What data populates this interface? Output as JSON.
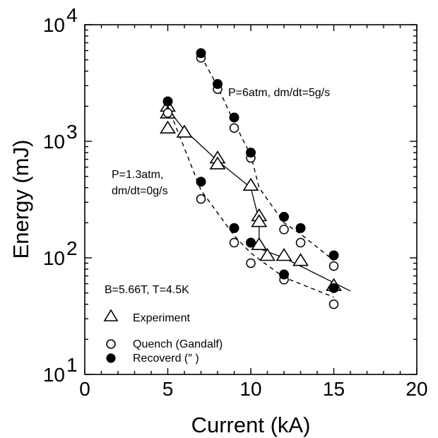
{
  "chart_data": {
    "type": "scatter",
    "xlabel": "Current (kA)",
    "ylabel": "Energy (mJ)",
    "xlim": [
      0,
      20
    ],
    "ylim": [
      10,
      10000
    ],
    "yscale": "log",
    "x_ticks": [
      0,
      5,
      10,
      15,
      20
    ],
    "y_ticks": [
      {
        "value": 10,
        "base": "10",
        "exp": "1"
      },
      {
        "value": 100,
        "base": "10",
        "exp": "2"
      },
      {
        "value": 1000,
        "base": "10",
        "exp": "3"
      },
      {
        "value": 10000,
        "base": "10",
        "exp": "4"
      }
    ],
    "grid": false,
    "annotations": [
      {
        "text": "P=6atm, dm/dt=5g/s"
      },
      {
        "text": "P=1.3atm,"
      },
      {
        "text": "dm/dt=0g/s"
      },
      {
        "text": "B=5.66T, T=4.5K"
      }
    ],
    "legend_position": "bottom-left",
    "legend": [
      "Experiment",
      "Quench (Gandalf)",
      "Recoverd (″    )"
    ],
    "series": [
      {
        "name": "Experiment",
        "marker": "triangle-open",
        "points": [
          [
            5,
            2000
          ],
          [
            5,
            1750
          ],
          [
            5,
            1300
          ],
          [
            6,
            1200
          ],
          [
            8,
            720
          ],
          [
            8,
            640
          ],
          [
            10,
            420
          ],
          [
            10.5,
            230
          ],
          [
            10.5,
            205
          ],
          [
            10.5,
            130
          ],
          [
            11,
            105
          ],
          [
            12,
            105
          ],
          [
            13,
            95
          ],
          [
            15,
            58
          ]
        ]
      },
      {
        "name": "Quench (Gandalf)",
        "marker": "circle-open",
        "points": [
          [
            5,
            1750
          ],
          [
            7,
            5200
          ],
          [
            7,
            320
          ],
          [
            8,
            2800
          ],
          [
            9,
            1300
          ],
          [
            9,
            135
          ],
          [
            10,
            720
          ],
          [
            10,
            90
          ],
          [
            12,
            175
          ],
          [
            12,
            65
          ],
          [
            13,
            135
          ],
          [
            15,
            85
          ],
          [
            15,
            40
          ]
        ]
      },
      {
        "name": "Recoverd",
        "marker": "circle-filled",
        "points": [
          [
            5,
            2200
          ],
          [
            7,
            5700
          ],
          [
            7,
            450
          ],
          [
            8,
            3100
          ],
          [
            9,
            1600
          ],
          [
            9,
            180
          ],
          [
            10,
            800
          ],
          [
            10,
            135
          ],
          [
            12,
            225
          ],
          [
            12,
            72
          ],
          [
            13,
            180
          ],
          [
            15,
            105
          ],
          [
            15,
            55
          ]
        ]
      }
    ],
    "lines": [
      {
        "style": "solid",
        "points": [
          [
            5,
            1900
          ],
          [
            6,
            1250
          ],
          [
            8,
            680
          ],
          [
            10,
            400
          ],
          [
            10.5,
            210
          ],
          [
            10.5,
            120
          ],
          [
            12,
            100
          ],
          [
            16,
            52
          ]
        ]
      },
      {
        "style": "dashed",
        "points": [
          [
            7,
            5400
          ],
          [
            8,
            2950
          ],
          [
            9,
            1450
          ],
          [
            10,
            760
          ],
          [
            10.5,
            400
          ],
          [
            12,
            200
          ],
          [
            13,
            160
          ],
          [
            15,
            95
          ]
        ]
      },
      {
        "style": "dashed",
        "points": [
          [
            5,
            2000
          ],
          [
            7,
            380
          ],
          [
            9,
            155
          ],
          [
            10,
            110
          ],
          [
            12,
            68
          ],
          [
            15,
            46
          ]
        ]
      }
    ]
  }
}
